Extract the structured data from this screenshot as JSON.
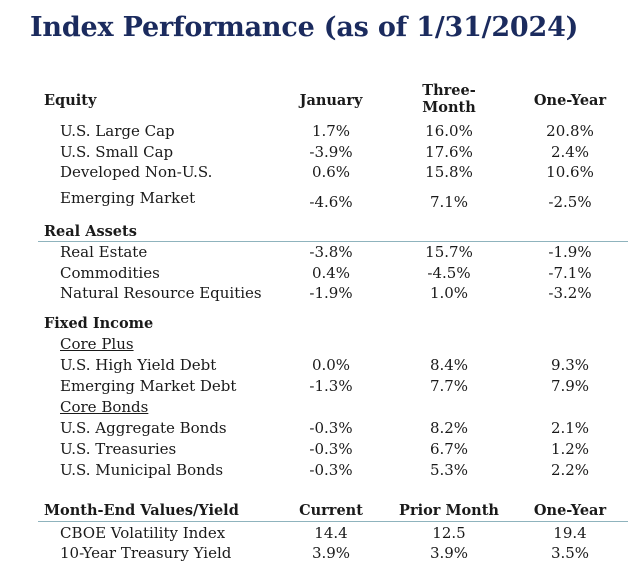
{
  "title": "Index Performance (as of 1/31/2024)",
  "header": {
    "section": "Equity",
    "col1": "January",
    "col2_line1": "Three-",
    "col2_line2": "Month",
    "col3": "One-Year"
  },
  "equity": [
    {
      "label": "U.S. Large Cap",
      "jan": "1.7%",
      "three": "16.0%",
      "one": "20.8%"
    },
    {
      "label": "U.S. Small Cap",
      "jan": "-3.9%",
      "three": "17.6%",
      "one": "2.4%"
    },
    {
      "label": "Developed Non-U.S.",
      "jan": "0.6%",
      "three": "15.8%",
      "one": "10.6%"
    },
    {
      "label": "Emerging Market",
      "jan": "-4.6%",
      "three": "7.1%",
      "one": "-2.5%"
    }
  ],
  "real_assets": {
    "title": "Real Assets",
    "rows": [
      {
        "label": "Real Estate",
        "jan": "-3.8%",
        "three": "15.7%",
        "one": "-1.9%"
      },
      {
        "label": "Commodities",
        "jan": "0.4%",
        "three": "-4.5%",
        "one": "-7.1%"
      },
      {
        "label": "Natural Resource Equities",
        "jan": "-1.9%",
        "three": "1.0%",
        "one": "-3.2%"
      }
    ]
  },
  "fixed_income": {
    "title": "Fixed Income",
    "core_plus": "Core Plus",
    "core_plus_rows": [
      {
        "label": "U.S. High Yield Debt",
        "jan": "0.0%",
        "three": "8.4%",
        "one": "9.3%"
      },
      {
        "label": "Emerging Market Debt",
        "jan": "-1.3%",
        "three": "7.7%",
        "one": "7.9%"
      }
    ],
    "core_bonds": "Core Bonds",
    "core_bonds_rows": [
      {
        "label": "U.S. Aggregate Bonds",
        "jan": "-0.3%",
        "three": "8.2%",
        "one": "2.1%"
      },
      {
        "label": "U.S. Treasuries",
        "jan": "-0.3%",
        "three": "6.7%",
        "one": "1.2%"
      },
      {
        "label": "U.S. Municipal Bonds",
        "jan": "-0.3%",
        "three": "5.3%",
        "one": "2.2%"
      }
    ]
  },
  "month_end": {
    "title": "Month-End Values/Yield",
    "col1": "Current",
    "col2": "Prior Month",
    "col3": "One-Year",
    "rows": [
      {
        "label": "CBOE Volatility Index",
        "cur": "14.4",
        "prior": "12.5",
        "one": "19.4"
      },
      {
        "label": "10-Year Treasury Yield",
        "cur": "3.9%",
        "prior": "3.9%",
        "one": "3.5%"
      }
    ]
  },
  "colors": {
    "title": "#1b2b5e",
    "rule": "#8fb3bd"
  }
}
